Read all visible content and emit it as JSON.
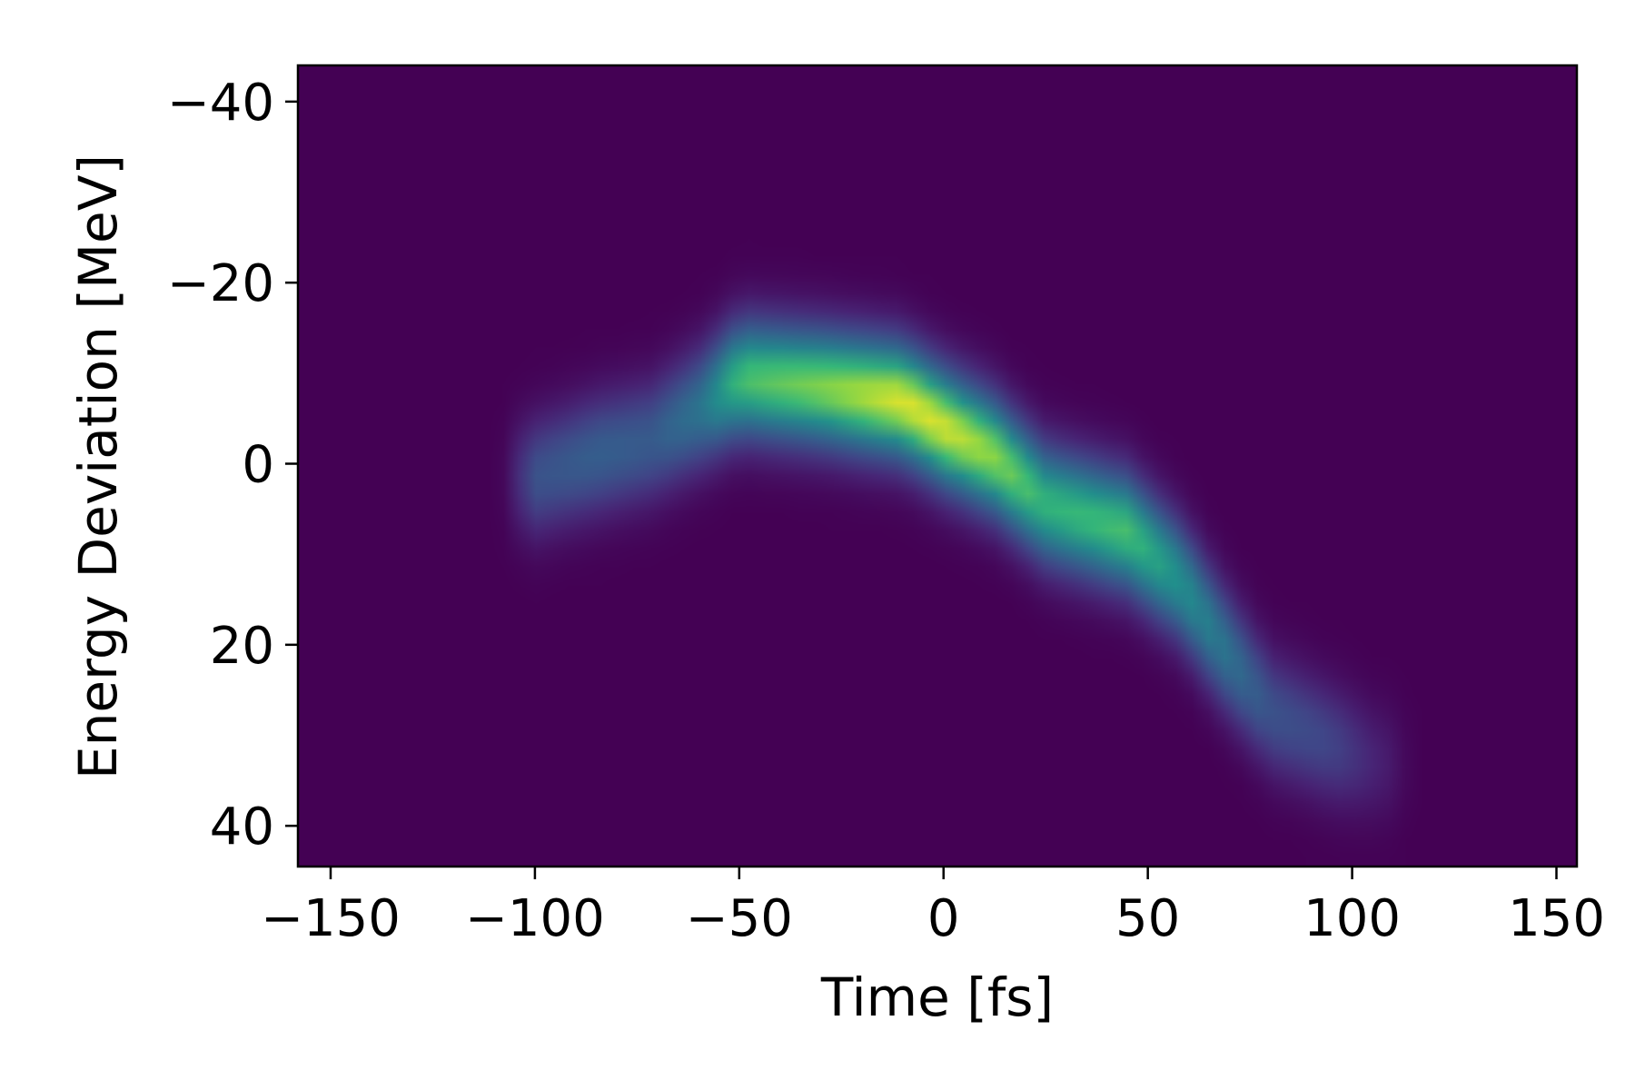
{
  "chart_data": {
    "type": "heatmap",
    "title": "",
    "xlabel": "Time [fs]",
    "ylabel": "Energy Deviation [MeV]",
    "xlim": [
      -158,
      155
    ],
    "ylim": [
      44.5,
      -44
    ],
    "y_axis_inverted": true,
    "xticks": [
      {
        "value": -150,
        "label": "−150"
      },
      {
        "value": -100,
        "label": "−100"
      },
      {
        "value": -50,
        "label": "−50"
      },
      {
        "value": 0,
        "label": "0"
      },
      {
        "value": 50,
        "label": "50"
      },
      {
        "value": 100,
        "label": "100"
      },
      {
        "value": 150,
        "label": "150"
      }
    ],
    "yticks": [
      {
        "value": -40,
        "label": "−40"
      },
      {
        "value": -20,
        "label": "−20"
      },
      {
        "value": 0,
        "label": "0"
      },
      {
        "value": 20,
        "label": "20"
      },
      {
        "value": 40,
        "label": "40"
      }
    ],
    "colormap": "viridis",
    "background_color": "#440154",
    "grid": false,
    "colorbar": false,
    "ridge": {
      "description": "centerline of the density band (time fs, energy deviation MeV, relative intensity 0-1)",
      "points": [
        {
          "t": -100,
          "e": 1.5,
          "i": 0.32
        },
        {
          "t": -85,
          "e": -1.0,
          "i": 0.38
        },
        {
          "t": -72,
          "e": -2.5,
          "i": 0.36
        },
        {
          "t": -60,
          "e": -6.0,
          "i": 0.48
        },
        {
          "t": -50,
          "e": -9.5,
          "i": 0.78
        },
        {
          "t": -30,
          "e": -8.5,
          "i": 0.86
        },
        {
          "t": -10,
          "e": -7.0,
          "i": 0.97
        },
        {
          "t": 0,
          "e": -4.0,
          "i": 0.96
        },
        {
          "t": 12,
          "e": -1.0,
          "i": 0.88
        },
        {
          "t": 25,
          "e": 4.5,
          "i": 0.74
        },
        {
          "t": 45,
          "e": 7.5,
          "i": 0.78
        },
        {
          "t": 58,
          "e": 13.0,
          "i": 0.62
        },
        {
          "t": 68,
          "e": 20.0,
          "i": 0.5
        },
        {
          "t": 80,
          "e": 27.5,
          "i": 0.32
        },
        {
          "t": 95,
          "e": 31.0,
          "i": 0.26
        },
        {
          "t": 106,
          "e": 33.0,
          "i": 0.12
        }
      ],
      "width_mev": 4.5
    }
  }
}
